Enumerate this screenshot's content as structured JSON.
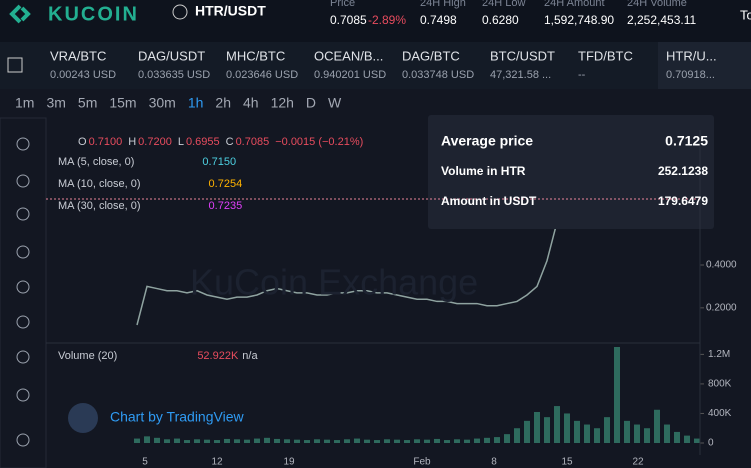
{
  "header": {
    "logo": "KUCOIN",
    "pair": "HTR/USDT",
    "stats": [
      {
        "label": "Price",
        "value": "0.7085",
        "change": "-2.89%"
      },
      {
        "label": "24H High",
        "value": "0.7498"
      },
      {
        "label": "24H Low",
        "value": "0.6280"
      },
      {
        "label": "24H Amount",
        "value": "1,592,748.90"
      },
      {
        "label": "24H Volume",
        "value": "2,252,453.11"
      }
    ],
    "extra": "Tou"
  },
  "tickers": [
    {
      "symbol": "VRA/BTC",
      "price": "0.00243 USD"
    },
    {
      "symbol": "DAG/USDT",
      "price": "0.033635 USD"
    },
    {
      "symbol": "MHC/BTC",
      "price": "0.023646 USD"
    },
    {
      "symbol": "OCEAN/B...",
      "price": "0.940201 USD"
    },
    {
      "symbol": "DAG/BTC",
      "price": "0.033748 USD"
    },
    {
      "symbol": "BTC/USDT",
      "price": "47,321.58 ..."
    },
    {
      "symbol": "TFD/BTC",
      "price": "--"
    },
    {
      "symbol": "HTR/U...",
      "price": "0.70918..."
    }
  ],
  "intervals": [
    "1m",
    "3m",
    "5m",
    "15m",
    "30m",
    "1h",
    "2h",
    "4h",
    "12h",
    "D",
    "W"
  ],
  "legend": {
    "ohlc": [
      {
        "label": "O",
        "value": "0.7100"
      },
      {
        "label": "H",
        "value": "0.7200"
      },
      {
        "label": "L",
        "value": "0.6955"
      },
      {
        "label": "C",
        "value": "0.7085"
      }
    ],
    "change": "−0.0015 (−0.21%)",
    "ma": [
      {
        "label": "MA (5, close, 0)",
        "value": "0.7150",
        "color": "#4dd0e1"
      },
      {
        "label": "MA (10, close, 0)",
        "value": "0.7254",
        "color": "#ffb300"
      },
      {
        "label": "MA (30, close, 0)",
        "value": "0.7235",
        "color": "#e040fb"
      }
    ],
    "volume": {
      "label": "Volume (20)",
      "value": "52.922K",
      "extra": "n/a"
    }
  },
  "watermark": "KuCoin Exchange",
  "branding": "Chart by TradingView",
  "tooltip": [
    {
      "label": "Average price",
      "value": "0.7125"
    },
    {
      "label": "Volume in HTR",
      "value": "252.1238"
    },
    {
      "label": "Amount in USDT",
      "value": "179.6479"
    }
  ],
  "chart": {
    "price": {
      "values": [
        0.12,
        0.3,
        0.29,
        0.28,
        0.28,
        0.27,
        0.28,
        0.26,
        0.25,
        0.24,
        0.25,
        0.25,
        0.26,
        0.28,
        0.29,
        0.28,
        0.27,
        0.27,
        0.26,
        0.26,
        0.27,
        0.27,
        0.28,
        0.28,
        0.27,
        0.27,
        0.26,
        0.25,
        0.24,
        0.24,
        0.23,
        0.23,
        0.22,
        0.22,
        0.22,
        0.21,
        0.21,
        0.22,
        0.23,
        0.26,
        0.3,
        0.42,
        0.6,
        0.8,
        0.85,
        0.86,
        0.8,
        0.76,
        0.75,
        0.77,
        0.78,
        0.76,
        0.75,
        0.74,
        0.73,
        0.72,
        0.72
      ],
      "color": "#8fa3a0",
      "ylim": [
        0.05,
        1.03
      ],
      "yticks": [
        {
          "value": 0.2,
          "label": "0.2000"
        },
        {
          "value": 0.4,
          "label": "0.4000"
        }
      ]
    },
    "volume": {
      "values": [
        60000,
        90000,
        70000,
        50000,
        60000,
        40000,
        50000,
        45000,
        40000,
        55000,
        50000,
        45000,
        60000,
        70000,
        55000,
        50000,
        45000,
        40000,
        50000,
        45000,
        40000,
        50000,
        60000,
        45000,
        40000,
        50000,
        45000,
        40000,
        50000,
        45000,
        55000,
        40000,
        50000,
        45000,
        60000,
        70000,
        80000,
        120000,
        200000,
        300000,
        420000,
        350000,
        500000,
        400000,
        300000,
        250000,
        200000,
        350000,
        1300000,
        300000,
        250000,
        200000,
        450000,
        250000,
        150000,
        100000,
        60000
      ],
      "color": "#2e6b5e",
      "ylim": [
        0,
        1300000
      ],
      "yticks": [
        {
          "value": 0,
          "label": "0"
        },
        {
          "value": 400000,
          "label": "400K"
        },
        {
          "value": 800000,
          "label": "800K"
        },
        {
          "value": 1200000,
          "label": "1.2M"
        }
      ]
    },
    "xlabels": [
      "5",
      "12",
      "19",
      "Feb",
      "8",
      "15",
      "22"
    ]
  }
}
